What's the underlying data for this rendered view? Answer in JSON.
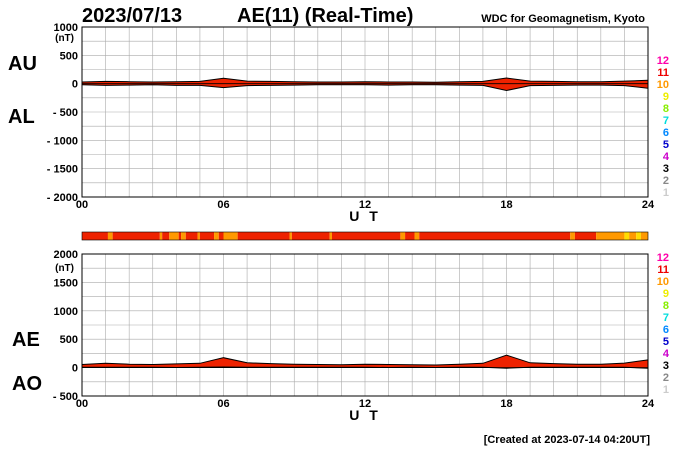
{
  "header": {
    "date": "2023/07/13",
    "title": "AE(11) (Real-Time)",
    "institution": "WDC for Geomagnetism, Kyoto"
  },
  "footer": {
    "created": "[Created at 2023-07-14 04:20UT]"
  },
  "legend": {
    "items": [
      {
        "label": "12",
        "color": "#ff00aa"
      },
      {
        "label": "11",
        "color": "#ee0000"
      },
      {
        "label": "10",
        "color": "#ff9900"
      },
      {
        "label": "9",
        "color": "#eeee00"
      },
      {
        "label": "8",
        "color": "#88ee00"
      },
      {
        "label": "7",
        "color": "#00dddd"
      },
      {
        "label": "6",
        "color": "#0088ff"
      },
      {
        "label": "5",
        "color": "#0000cc"
      },
      {
        "label": "4",
        "color": "#cc00cc"
      },
      {
        "label": "3",
        "color": "#000000"
      },
      {
        "label": "2",
        "color": "#888888"
      },
      {
        "label": "1",
        "color": "#cccccc"
      }
    ]
  },
  "colors": {
    "fill_main": "#ee2200",
    "fill_alt": "#ff9900",
    "fill_yellow": "#ffdd00",
    "line": "#000000",
    "grid": "#aaaaaa"
  },
  "chart_data": [
    {
      "type": "area",
      "side_labels": [
        "AU",
        "AL"
      ],
      "ylabel_unit": "(nT)",
      "ylim": [
        -2000,
        1000
      ],
      "yticks": [
        1000,
        500,
        0,
        -500,
        -1000,
        -1500,
        -2000
      ],
      "ytick_labels": [
        "1000",
        "500",
        "0",
        "- 500",
        "- 1000",
        "- 1500",
        "- 2000"
      ],
      "xlim": [
        0,
        24
      ],
      "xticks": [
        0,
        6,
        12,
        18,
        24
      ],
      "xtick_labels": [
        "00",
        "06",
        "12",
        "18",
        "24"
      ],
      "xlabel": "U T",
      "grid": true,
      "x": [
        0,
        1,
        2,
        3,
        4,
        5,
        6,
        7,
        8,
        9,
        10,
        11,
        12,
        13,
        14,
        15,
        16,
        17,
        18,
        19,
        20,
        21,
        22,
        23,
        24
      ],
      "series": [
        {
          "values": [
            30,
            40,
            35,
            30,
            35,
            40,
            95,
            45,
            40,
            35,
            30,
            30,
            35,
            30,
            30,
            25,
            35,
            40,
            100,
            45,
            40,
            35,
            35,
            45,
            60
          ]
        },
        {
          "values": [
            -20,
            -30,
            -25,
            -20,
            -30,
            -30,
            -70,
            -35,
            -30,
            -25,
            -20,
            -20,
            -20,
            -25,
            -20,
            -20,
            -25,
            -30,
            -120,
            -35,
            -30,
            -25,
            -25,
            -35,
            -80
          ]
        }
      ]
    },
    {
      "type": "area",
      "side_labels": [
        "AE",
        "AO"
      ],
      "ylabel_unit": "(nT)",
      "ylim": [
        -500,
        2000
      ],
      "yticks": [
        2000,
        1500,
        1000,
        500,
        0,
        -500
      ],
      "ytick_labels": [
        "2000",
        "1500",
        "1000",
        "500",
        "0",
        "- 500"
      ],
      "xlim": [
        0,
        24
      ],
      "xticks": [
        0,
        6,
        12,
        18,
        24
      ],
      "xtick_labels": [
        "00",
        "06",
        "12",
        "18",
        "24"
      ],
      "xlabel": "U T",
      "grid": true,
      "x": [
        0,
        1,
        2,
        3,
        4,
        5,
        6,
        7,
        8,
        9,
        10,
        11,
        12,
        13,
        14,
        15,
        16,
        17,
        18,
        19,
        20,
        21,
        22,
        23,
        24
      ],
      "series": [
        {
          "values": [
            55,
            75,
            60,
            55,
            65,
            75,
            175,
            85,
            70,
            60,
            55,
            50,
            60,
            55,
            50,
            45,
            60,
            75,
            220,
            85,
            70,
            60,
            60,
            80,
            135
          ]
        },
        {
          "values": [
            5,
            5,
            5,
            5,
            2,
            5,
            10,
            5,
            5,
            5,
            5,
            5,
            5,
            2,
            5,
            2,
            5,
            5,
            -10,
            5,
            5,
            5,
            5,
            5,
            -10
          ]
        }
      ]
    }
  ],
  "activity_bar": {
    "segments": [
      {
        "start": 0,
        "end": 1.1,
        "level": 11
      },
      {
        "start": 1.1,
        "end": 1.3,
        "level": 10
      },
      {
        "start": 1.3,
        "end": 3.3,
        "level": 11
      },
      {
        "start": 3.3,
        "end": 3.4,
        "level": 10
      },
      {
        "start": 3.4,
        "end": 3.7,
        "level": 11
      },
      {
        "start": 3.7,
        "end": 4.1,
        "level": 10
      },
      {
        "start": 4.1,
        "end": 4.2,
        "level": 11
      },
      {
        "start": 4.2,
        "end": 4.4,
        "level": 10
      },
      {
        "start": 4.4,
        "end": 4.9,
        "level": 11
      },
      {
        "start": 4.9,
        "end": 5.0,
        "level": 10
      },
      {
        "start": 5.0,
        "end": 5.6,
        "level": 11
      },
      {
        "start": 5.6,
        "end": 5.8,
        "level": 10
      },
      {
        "start": 5.8,
        "end": 6.0,
        "level": 11
      },
      {
        "start": 6.0,
        "end": 6.6,
        "level": 10
      },
      {
        "start": 6.6,
        "end": 8.8,
        "level": 11
      },
      {
        "start": 8.8,
        "end": 8.9,
        "level": 10
      },
      {
        "start": 8.9,
        "end": 10.5,
        "level": 11
      },
      {
        "start": 10.5,
        "end": 10.6,
        "level": 10
      },
      {
        "start": 10.6,
        "end": 13.5,
        "level": 11
      },
      {
        "start": 13.5,
        "end": 13.7,
        "level": 10
      },
      {
        "start": 13.7,
        "end": 14.1,
        "level": 11
      },
      {
        "start": 14.1,
        "end": 14.3,
        "level": 10
      },
      {
        "start": 14.3,
        "end": 20.7,
        "level": 11
      },
      {
        "start": 20.7,
        "end": 20.9,
        "level": 10
      },
      {
        "start": 20.9,
        "end": 21.8,
        "level": 11
      },
      {
        "start": 21.8,
        "end": 23.0,
        "level": 10
      },
      {
        "start": 23.0,
        "end": 23.2,
        "level": 9
      },
      {
        "start": 23.2,
        "end": 23.5,
        "level": 10
      },
      {
        "start": 23.5,
        "end": 23.7,
        "level": 9
      },
      {
        "start": 23.7,
        "end": 24,
        "level": 10
      }
    ]
  }
}
